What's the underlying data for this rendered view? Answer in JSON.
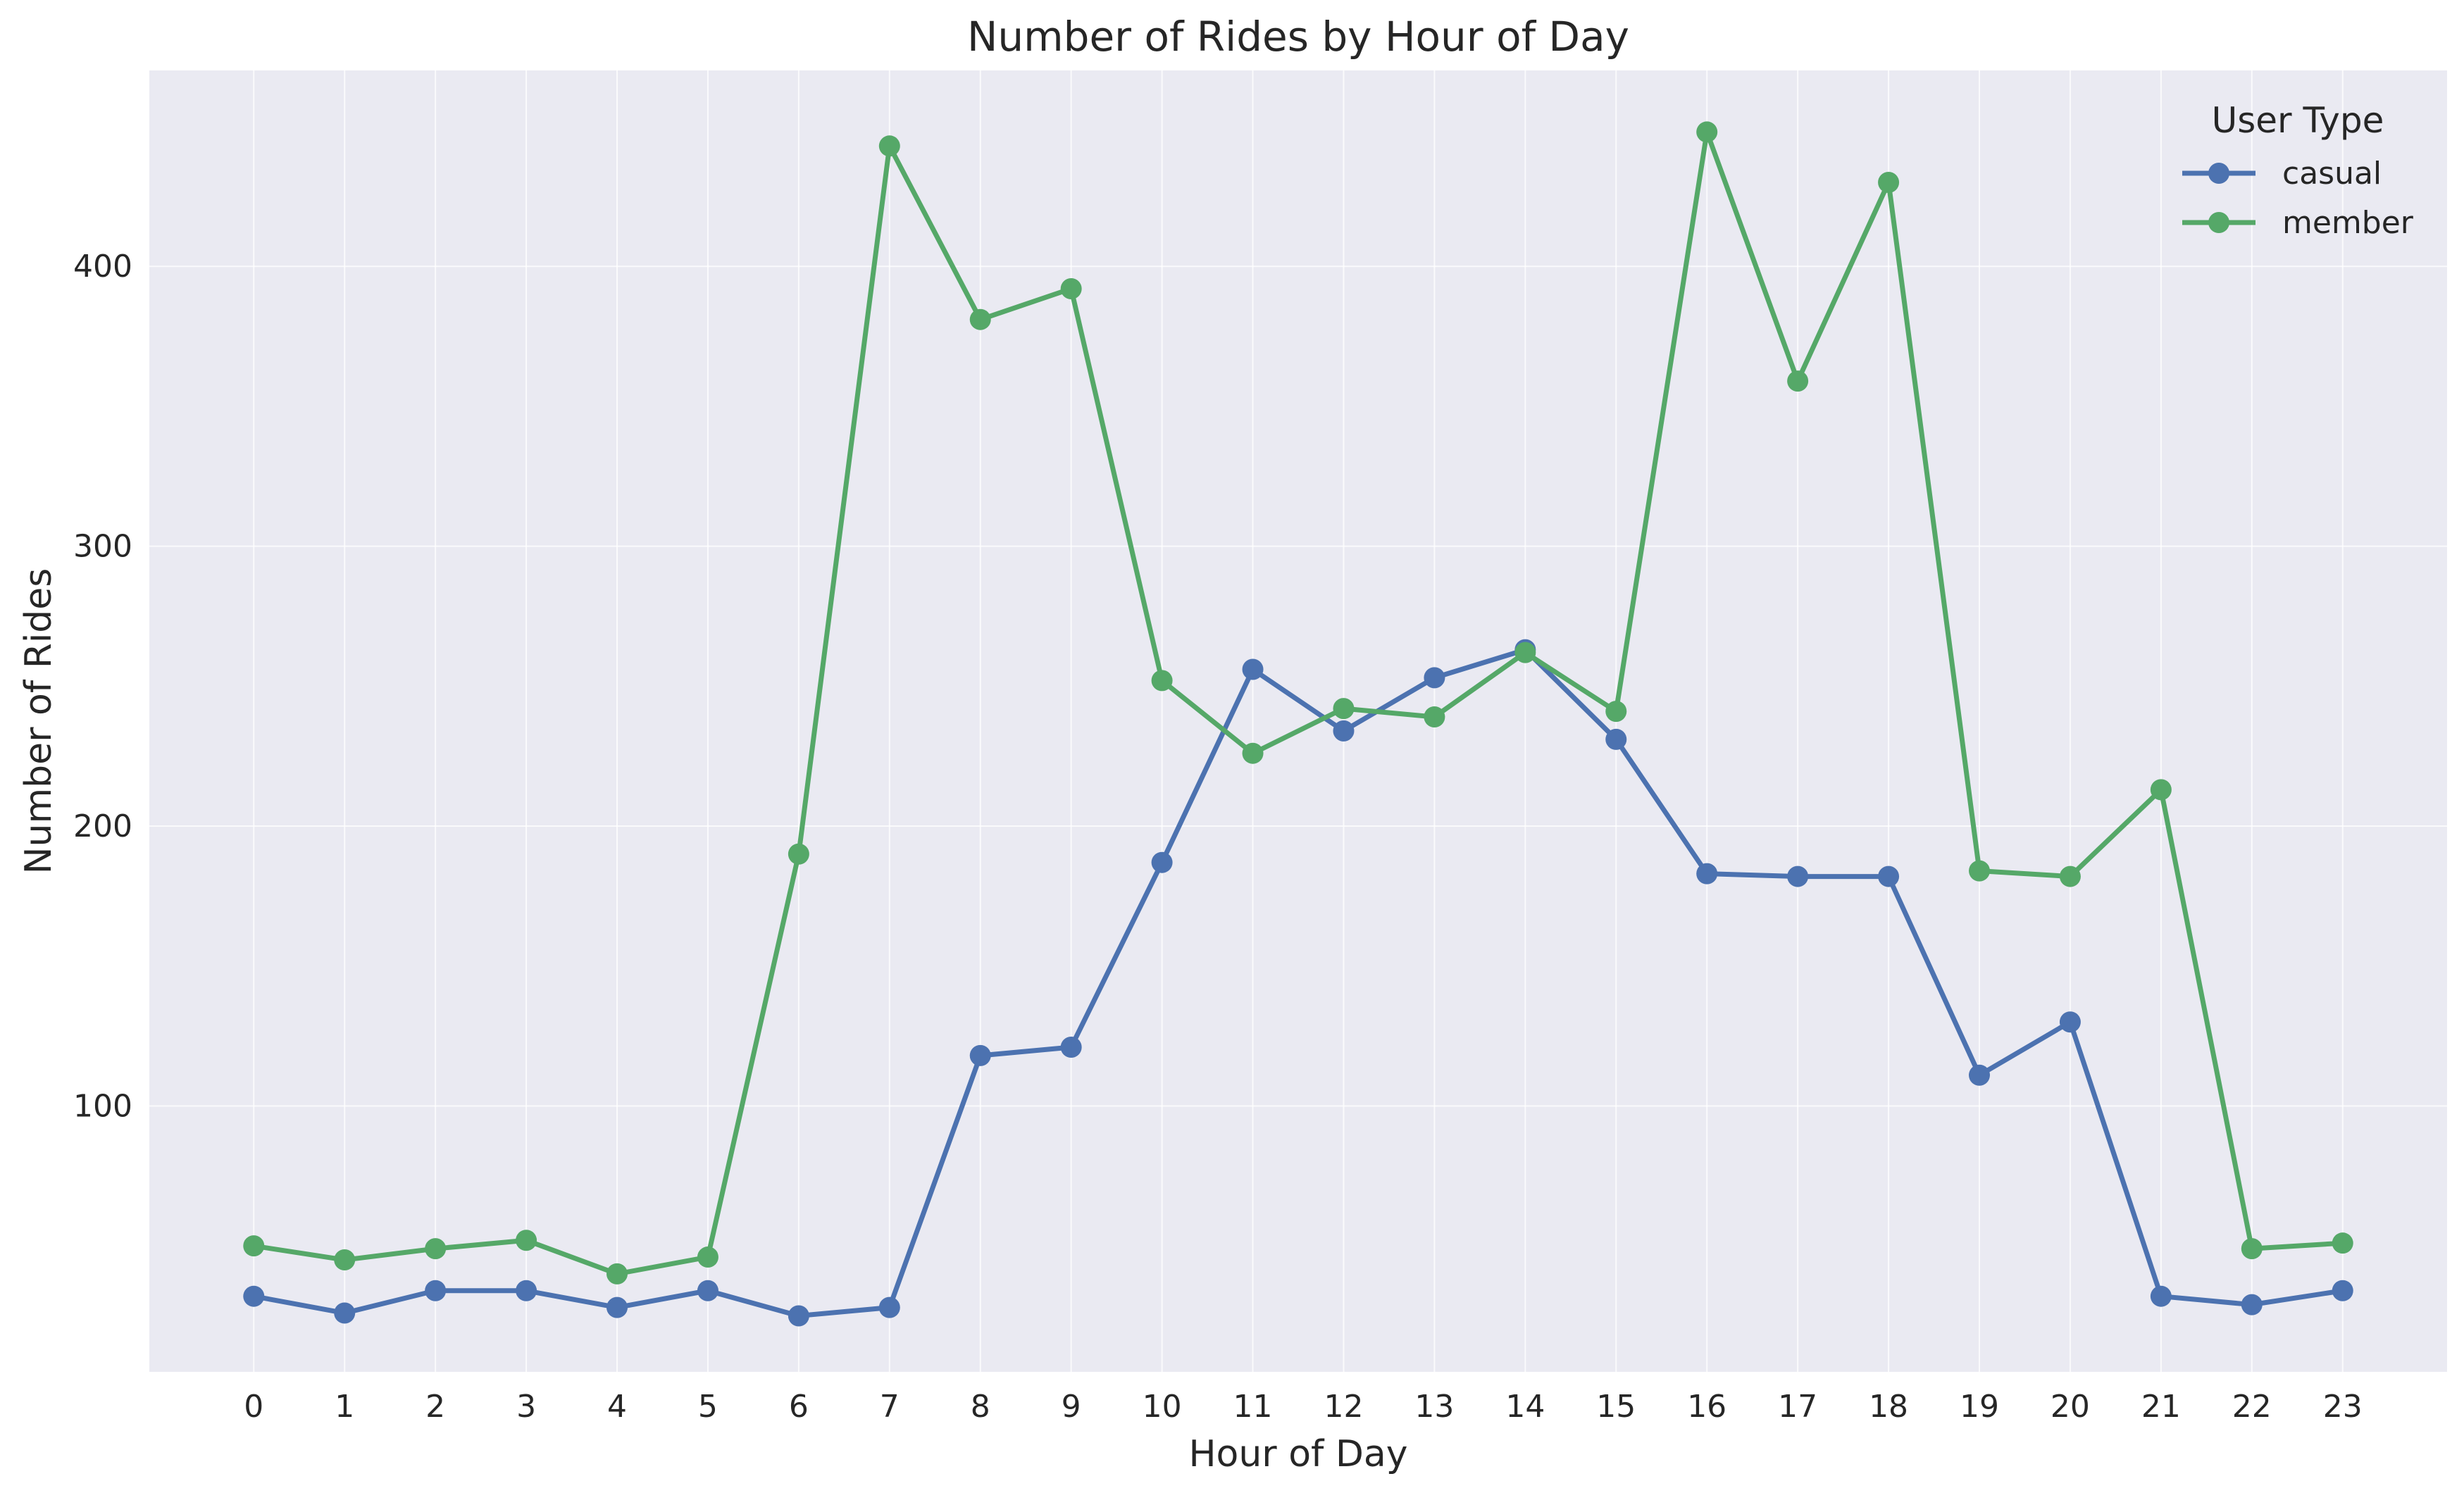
{
  "chart_data": {
    "type": "line",
    "title": "Number of Rides by Hour of Day",
    "xlabel": "Hour of Day",
    "ylabel": "Number of Rides",
    "x": [
      0,
      1,
      2,
      3,
      4,
      5,
      6,
      7,
      8,
      9,
      10,
      11,
      12,
      13,
      14,
      15,
      16,
      17,
      18,
      19,
      20,
      21,
      22,
      23
    ],
    "xlim": [
      -1.15,
      24.15
    ],
    "ylim": [
      5,
      470
    ],
    "yticks": [
      100,
      200,
      300,
      400
    ],
    "grid": true,
    "legend": {
      "title": "User Type",
      "placement": "top-right"
    },
    "series": [
      {
        "name": "casual",
        "color": "#4c72b0",
        "values": [
          32,
          26,
          34,
          34,
          28,
          34,
          25,
          28,
          118,
          121,
          187,
          256,
          234,
          253,
          263,
          231,
          183,
          182,
          182,
          111,
          130,
          32,
          29,
          34
        ]
      },
      {
        "name": "member",
        "color": "#55a868",
        "values": [
          50,
          45,
          49,
          52,
          40,
          46,
          190,
          443,
          381,
          392,
          252,
          226,
          242,
          239,
          262,
          241,
          448,
          359,
          430,
          184,
          182,
          213,
          49,
          51
        ]
      }
    ],
    "colors": {
      "plot_background": "#eaeaf2",
      "grid": "#ffffff"
    }
  }
}
